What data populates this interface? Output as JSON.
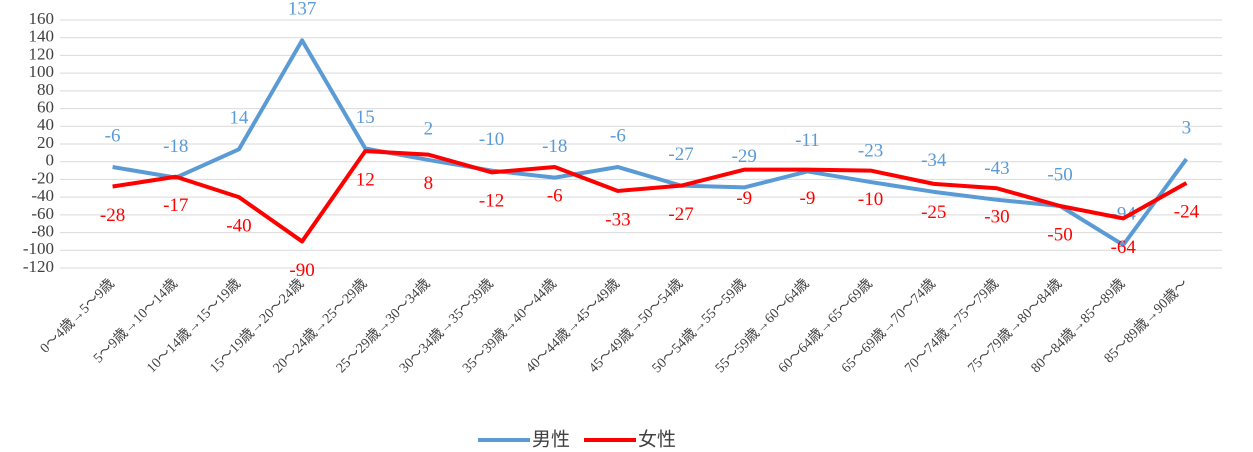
{
  "chart_data": {
    "type": "line",
    "categories": [
      "0～4歳→5～9歳",
      "5～9歳→10～14歳",
      "10～14歳→15～19歳",
      "15～19歳→20～24歳",
      "20～24歳→25～29歳",
      "25～29歳→30～34歳",
      "30～34歳→35～39歳",
      "35～39歳→40～44歳",
      "40～44歳→45～49歳",
      "45～49歳→50～54歳",
      "50～54歳→55～59歳",
      "55～59歳→60～64歳",
      "60～64歳→65～69歳",
      "65～69歳→70～74歳",
      "70～74歳→75～79歳",
      "75～79歳→80～84歳",
      "80～84歳→85～89歳",
      "85～89歳→90歳～"
    ],
    "series": [
      {
        "name": "男性",
        "color": "#5b9bd5",
        "values": [
          -6,
          -18,
          14,
          137,
          15,
          2,
          -10,
          -18,
          -6,
          -27,
          -29,
          -11,
          -23,
          -34,
          -43,
          -50,
          -94,
          3
        ]
      },
      {
        "name": "女性",
        "color": "#ff0000",
        "values": [
          -28,
          -17,
          -40,
          -90,
          12,
          8,
          -12,
          -6,
          -33,
          -27,
          -9,
          -9,
          -10,
          -25,
          -30,
          -50,
          -64,
          -24
        ]
      }
    ],
    "ylim": [
      -120,
      160
    ],
    "yticks": [
      -120,
      -100,
      -80,
      -60,
      -40,
      -20,
      0,
      20,
      40,
      60,
      80,
      100,
      120,
      140,
      160
    ],
    "grid": true,
    "legend": "bottom"
  }
}
